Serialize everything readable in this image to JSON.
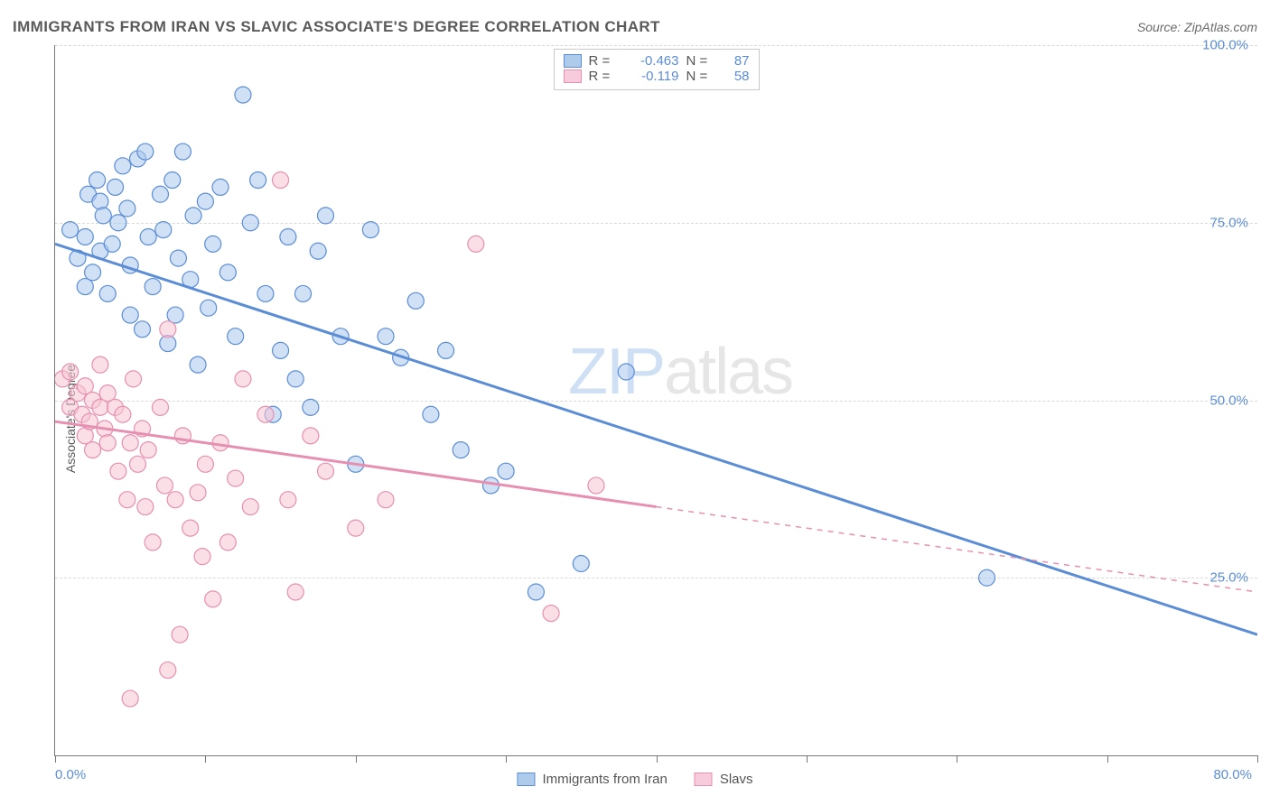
{
  "title": "IMMIGRANTS FROM IRAN VS SLAVIC ASSOCIATE'S DEGREE CORRELATION CHART",
  "source": "Source: ZipAtlas.com",
  "y_axis_label": "Associate's Degree",
  "watermark_zip": "ZIP",
  "watermark_rest": "atlas",
  "chart": {
    "type": "scatter",
    "background_color": "#ffffff",
    "grid_color": "#d9d9d9",
    "axis_color": "#777777",
    "text_color": "#5a5a5a",
    "value_color": "#5b8dd6",
    "xlim": [
      0,
      80
    ],
    "ylim": [
      0,
      100
    ],
    "y_gridlines": [
      25,
      50,
      75,
      100
    ],
    "y_ticklabels": [
      "25.0%",
      "50.0%",
      "75.0%",
      "100.0%"
    ],
    "x_minor_ticks": [
      0,
      10,
      20,
      30,
      40,
      50,
      60,
      70,
      80
    ],
    "x_endlabels": [
      "0.0%",
      "80.0%"
    ],
    "marker_radius": 9,
    "marker_opacity": 0.55,
    "line_width_main": 3,
    "line_width_dash": 1.5,
    "series": [
      {
        "name": "Immigrants from Iran",
        "color_fill": "#a9c8ec",
        "color_stroke": "#5b8dd6",
        "R": "-0.463",
        "N": "87",
        "trend_solid": {
          "x1": 0,
          "y1": 72,
          "x2": 80,
          "y2": 17
        },
        "points": [
          [
            1,
            74
          ],
          [
            1.5,
            70
          ],
          [
            2,
            66
          ],
          [
            2,
            73
          ],
          [
            2.2,
            79
          ],
          [
            2.5,
            68
          ],
          [
            2.8,
            81
          ],
          [
            3,
            78
          ],
          [
            3,
            71
          ],
          [
            3.2,
            76
          ],
          [
            3.5,
            65
          ],
          [
            3.8,
            72
          ],
          [
            4,
            80
          ],
          [
            4.2,
            75
          ],
          [
            4.5,
            83
          ],
          [
            4.8,
            77
          ],
          [
            5,
            69
          ],
          [
            5,
            62
          ],
          [
            5.5,
            84
          ],
          [
            5.8,
            60
          ],
          [
            6,
            85
          ],
          [
            6.2,
            73
          ],
          [
            6.5,
            66
          ],
          [
            7,
            79
          ],
          [
            7.2,
            74
          ],
          [
            7.5,
            58
          ],
          [
            7.8,
            81
          ],
          [
            8,
            62
          ],
          [
            8.2,
            70
          ],
          [
            8.5,
            85
          ],
          [
            9,
            67
          ],
          [
            9.2,
            76
          ],
          [
            9.5,
            55
          ],
          [
            10,
            78
          ],
          [
            10.2,
            63
          ],
          [
            10.5,
            72
          ],
          [
            11,
            80
          ],
          [
            11.5,
            68
          ],
          [
            12,
            59
          ],
          [
            12.5,
            93
          ],
          [
            13,
            75
          ],
          [
            13.5,
            81
          ],
          [
            14,
            65
          ],
          [
            14.5,
            48
          ],
          [
            15,
            57
          ],
          [
            15.5,
            73
          ],
          [
            16,
            53
          ],
          [
            16.5,
            65
          ],
          [
            17,
            49
          ],
          [
            17.5,
            71
          ],
          [
            18,
            76
          ],
          [
            19,
            59
          ],
          [
            20,
            41
          ],
          [
            21,
            74
          ],
          [
            22,
            59
          ],
          [
            23,
            56
          ],
          [
            24,
            64
          ],
          [
            25,
            48
          ],
          [
            26,
            57
          ],
          [
            27,
            43
          ],
          [
            29,
            38
          ],
          [
            30,
            40
          ],
          [
            32,
            23
          ],
          [
            35,
            27
          ],
          [
            38,
            54
          ],
          [
            62,
            25
          ]
        ]
      },
      {
        "name": "Slavs",
        "color_fill": "#f5c4d4",
        "color_stroke": "#e78fb0",
        "R": "-0.119",
        "N": "58",
        "trend_solid": {
          "x1": 0,
          "y1": 47,
          "x2": 40,
          "y2": 35
        },
        "trend_dash": {
          "x1": 40,
          "y1": 35,
          "x2": 80,
          "y2": 23
        },
        "points": [
          [
            0.5,
            53
          ],
          [
            1,
            49
          ],
          [
            1,
            54
          ],
          [
            1.5,
            51
          ],
          [
            1.8,
            48
          ],
          [
            2,
            45
          ],
          [
            2,
            52
          ],
          [
            2.3,
            47
          ],
          [
            2.5,
            50
          ],
          [
            2.5,
            43
          ],
          [
            3,
            55
          ],
          [
            3,
            49
          ],
          [
            3.3,
            46
          ],
          [
            3.5,
            44
          ],
          [
            3.5,
            51
          ],
          [
            4,
            49
          ],
          [
            4.2,
            40
          ],
          [
            4.5,
            48
          ],
          [
            4.8,
            36
          ],
          [
            5,
            44
          ],
          [
            5.2,
            53
          ],
          [
            5.5,
            41
          ],
          [
            5.8,
            46
          ],
          [
            6,
            35
          ],
          [
            6.2,
            43
          ],
          [
            6.5,
            30
          ],
          [
            7,
            49
          ],
          [
            7.3,
            38
          ],
          [
            7.5,
            60
          ],
          [
            8,
            36
          ],
          [
            8.3,
            17
          ],
          [
            8.5,
            45
          ],
          [
            9,
            32
          ],
          [
            9.5,
            37
          ],
          [
            9.8,
            28
          ],
          [
            10,
            41
          ],
          [
            10.5,
            22
          ],
          [
            11,
            44
          ],
          [
            11.5,
            30
          ],
          [
            12,
            39
          ],
          [
            12.5,
            53
          ],
          [
            13,
            35
          ],
          [
            14,
            48
          ],
          [
            15,
            81
          ],
          [
            15.5,
            36
          ],
          [
            16,
            23
          ],
          [
            17,
            45
          ],
          [
            18,
            40
          ],
          [
            20,
            32
          ],
          [
            22,
            36
          ],
          [
            28,
            72
          ],
          [
            33,
            20
          ],
          [
            36,
            38
          ],
          [
            5,
            8
          ],
          [
            7.5,
            12
          ]
        ]
      }
    ]
  },
  "legend_bottom": [
    {
      "swatch": "blue",
      "label": "Immigrants from Iran"
    },
    {
      "swatch": "pink",
      "label": "Slavs"
    }
  ]
}
